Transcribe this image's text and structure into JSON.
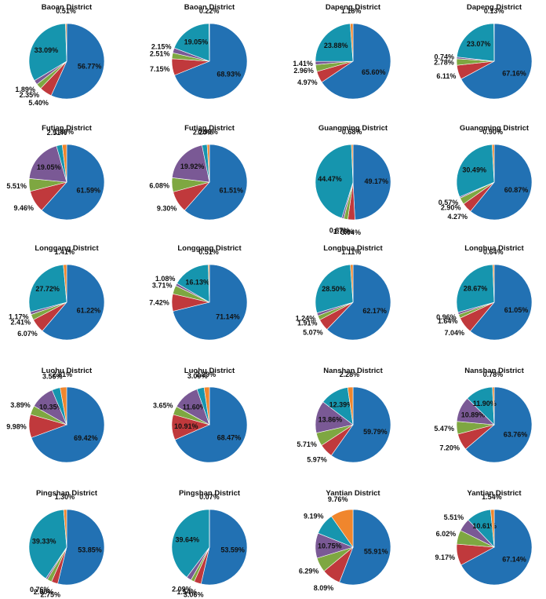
{
  "colors": {
    "blue": "#2271b3",
    "red": "#c0393c",
    "green": "#7ea741",
    "purple": "#7a5995",
    "teal": "#1695ae",
    "orange": "#f0862d"
  },
  "chart_data": [
    {
      "type": "pie",
      "title": "Baoan District",
      "values": [
        56.77,
        5.4,
        2.35,
        1.89,
        0,
        33.09,
        0.51
      ],
      "labels": [
        "56.77%",
        "5.40%",
        "2.35%",
        "1.89%",
        "",
        "33.09%",
        "0.51%"
      ]
    },
    {
      "type": "pie",
      "title": "Baoan District",
      "values": [
        68.93,
        7.15,
        2.51,
        2.15,
        0,
        19.05,
        0.22
      ],
      "labels": [
        "68.93%",
        "7.15%",
        "2.51%",
        "2.15%",
        "",
        "19.05%",
        "0.22%"
      ]
    },
    {
      "type": "pie",
      "title": "Dapeng District",
      "values": [
        65.6,
        4.97,
        2.96,
        1.41,
        0,
        23.88,
        1.18
      ],
      "labels": [
        "65.60%",
        "4.97%",
        "2.96%",
        "1.41%",
        "",
        "23.88%",
        "1.18%"
      ]
    },
    {
      "type": "pie",
      "title": "Dapeng District",
      "values": [
        67.16,
        6.11,
        2.78,
        0.74,
        0,
        23.07,
        0.13
      ],
      "labels": [
        "67.16%",
        "6.11%",
        "2.78%",
        "0.74%",
        "",
        "23.07%",
        "0.13%"
      ]
    },
    {
      "type": "pie",
      "title": "Futian District",
      "values": [
        61.59,
        9.46,
        5.51,
        19.05,
        2.51,
        1.89
      ],
      "labels": [
        "61.59%",
        "9.46%",
        "5.51%",
        "19.05%",
        "2.51%",
        "1.89%"
      ],
      "purple": true
    },
    {
      "type": "pie",
      "title": "Futian District",
      "values": [
        61.51,
        9.3,
        6.08,
        19.92,
        2.2,
        0.99
      ],
      "labels": [
        "61.51%",
        "9.30%",
        "6.08%",
        "19.92%",
        "2.20%",
        "0.99%"
      ],
      "purple": true
    },
    {
      "type": "pie",
      "title": "Guangming District",
      "values": [
        49.17,
        3.04,
        1.76,
        0.87,
        0,
        44.47,
        0.68
      ],
      "labels": [
        "49.17%",
        "3.04%",
        "1.76%",
        "0.87%",
        "",
        "44.47%",
        "0.68%"
      ]
    },
    {
      "type": "pie",
      "title": "Guangming District",
      "values": [
        60.87,
        4.27,
        2.9,
        0.57,
        0,
        30.49,
        0.9
      ],
      "labels": [
        "60.87%",
        "4.27%",
        "2.90%",
        "0.57%",
        "",
        "30.49%",
        "0.90%"
      ]
    },
    {
      "type": "pie",
      "title": "Longgang District",
      "values": [
        61.22,
        6.07,
        2.41,
        1.17,
        0,
        27.72,
        1.41
      ],
      "labels": [
        "61.22%",
        "6.07%",
        "2.41%",
        "1.17%",
        "",
        "27.72%",
        "1.41%"
      ]
    },
    {
      "type": "pie",
      "title": "Longgang District",
      "values": [
        71.14,
        7.42,
        3.71,
        1.08,
        0,
        16.13,
        0.51
      ],
      "labels": [
        "71.14%",
        "7.42%",
        "3.71%",
        "1.08%",
        "",
        "16.13%",
        "0.51%"
      ]
    },
    {
      "type": "pie",
      "title": "Longhua District",
      "values": [
        62.17,
        5.07,
        1.91,
        1.24,
        0,
        28.5,
        1.11
      ],
      "labels": [
        "62.17%",
        "5.07%",
        "1.91%",
        "1.24%",
        "",
        "28.50%",
        "1.11%"
      ]
    },
    {
      "type": "pie",
      "title": "Longhua District",
      "values": [
        61.05,
        7.04,
        1.64,
        0.96,
        0,
        28.67,
        0.64
      ],
      "labels": [
        "61.05%",
        "7.04%",
        "1.64%",
        "0.96%",
        "",
        "28.67%",
        "0.64%"
      ]
    },
    {
      "type": "pie",
      "title": "Luohu District",
      "values": [
        69.42,
        9.98,
        3.89,
        10.35,
        3.56,
        2.81
      ],
      "labels": [
        "69.42%",
        "9.98%",
        "3.89%",
        "10.35%",
        "3.56%",
        "2.81%"
      ],
      "purple": true
    },
    {
      "type": "pie",
      "title": "Luohu District",
      "values": [
        68.47,
        10.91,
        3.65,
        11.6,
        3.09,
        2.29
      ],
      "labels": [
        "68.47%",
        "10.91%",
        "3.65%",
        "11.60%",
        "3.09%",
        "2.29%"
      ],
      "purple": true
    },
    {
      "type": "pie",
      "title": "Nanshan District",
      "values": [
        59.79,
        5.97,
        5.71,
        13.86,
        12.39,
        2.28
      ],
      "labels": [
        "59.79%",
        "5.97%",
        "5.71%",
        "13.86%",
        "12.39%",
        "2.28%"
      ],
      "purple": true
    },
    {
      "type": "pie",
      "title": "Nanshan District",
      "values": [
        63.76,
        7.2,
        5.47,
        10.89,
        11.9,
        0.78
      ],
      "labels": [
        "63.76%",
        "7.20%",
        "5.47%",
        "10.89%",
        "11.90%",
        "0.78%"
      ],
      "purple": true
    },
    {
      "type": "pie",
      "title": "Pingshan District",
      "values": [
        53.85,
        2.75,
        2.0,
        0.76,
        0,
        39.33,
        1.3
      ],
      "labels": [
        "53.85%",
        "2.75%",
        "2.00%",
        "0.76%",
        "",
        "39.33%",
        "1.30%"
      ]
    },
    {
      "type": "pie",
      "title": "Pingshan District",
      "values": [
        53.59,
        3.06,
        1.54,
        2.09,
        0,
        39.64,
        0.07
      ],
      "labels": [
        "53.59%",
        "3.06%",
        "1.54%",
        "2.09%",
        "",
        "39.64%",
        "0.07%"
      ]
    },
    {
      "type": "pie",
      "title": "Yantian District",
      "values": [
        55.91,
        8.09,
        6.29,
        10.75,
        9.19,
        9.76
      ],
      "labels": [
        "55.91%",
        "8.09%",
        "6.29%",
        "10.75%",
        "9.19%",
        "9.76%"
      ],
      "purple": true
    },
    {
      "type": "pie",
      "title": "Yantian District",
      "values": [
        67.14,
        9.17,
        6.02,
        5.51,
        10.61,
        1.54
      ],
      "labels": [
        "67.14%",
        "9.17%",
        "6.02%",
        "5.51%",
        "10.61%",
        "1.54%"
      ],
      "purple": true
    }
  ]
}
